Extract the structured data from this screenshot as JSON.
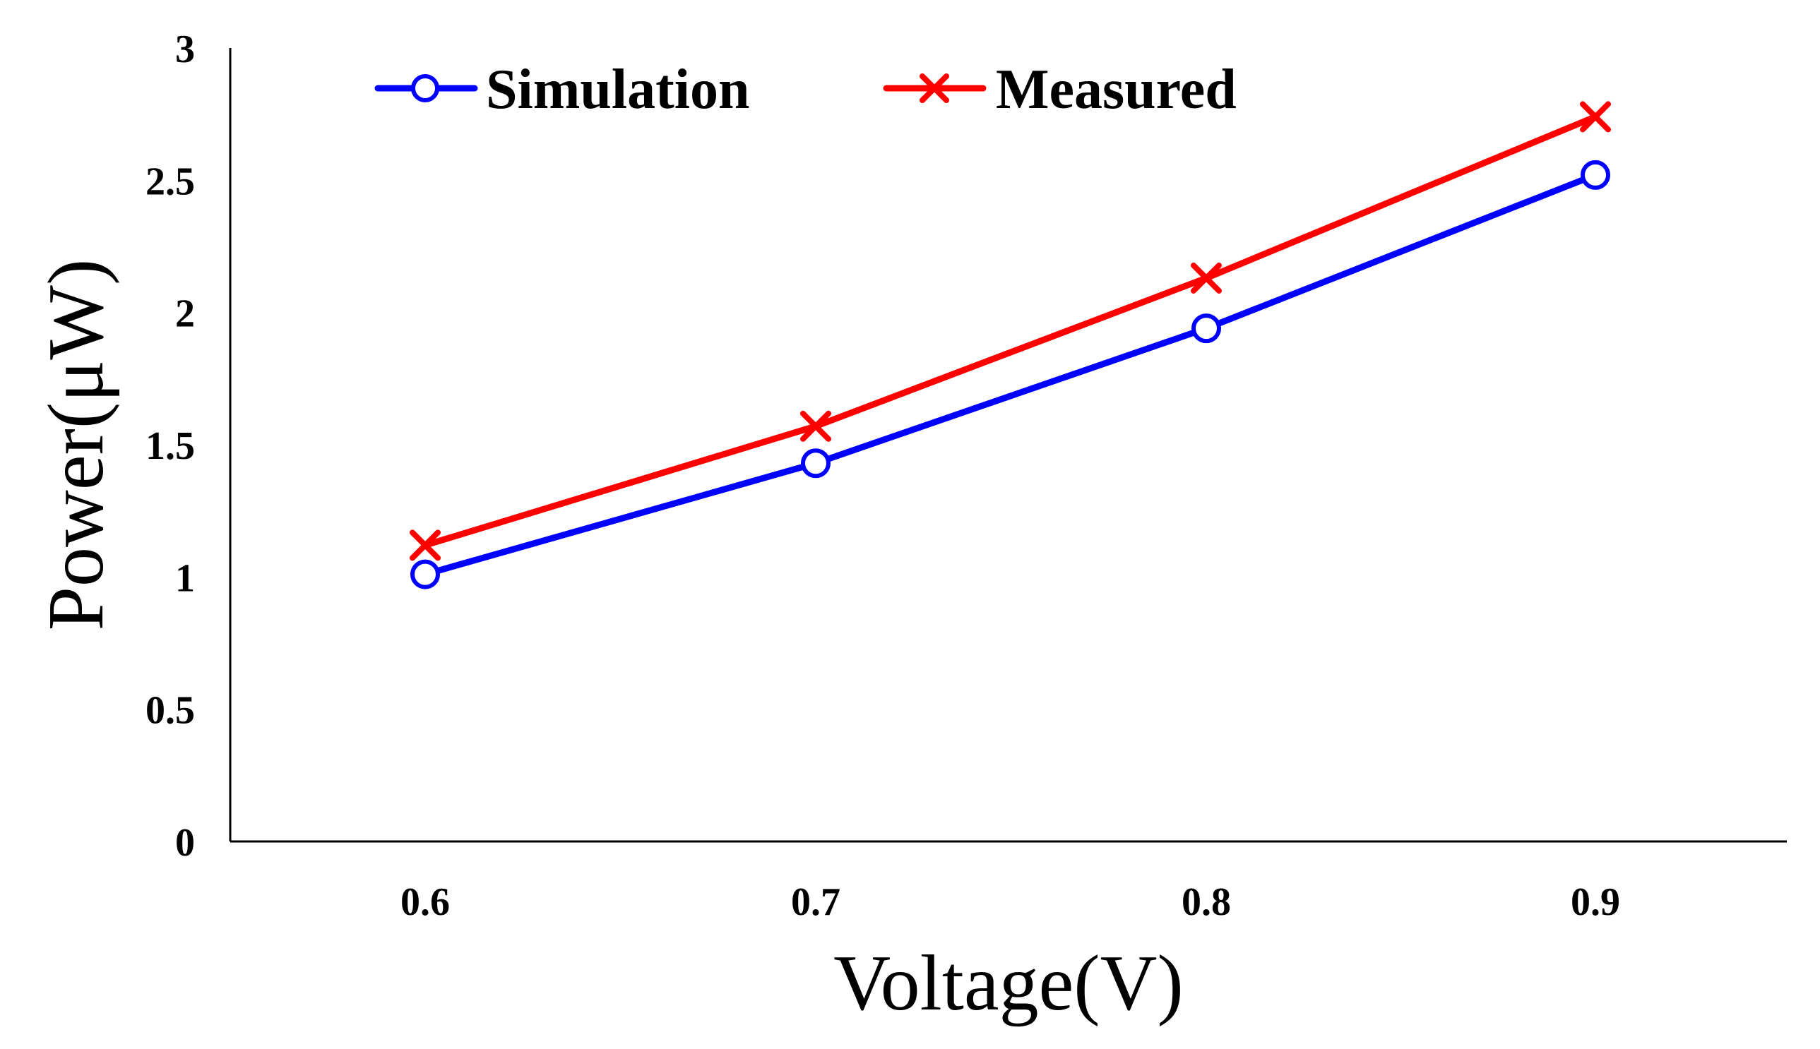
{
  "chart_data": {
    "type": "line",
    "title": "",
    "xlabel": "Voltage(V)",
    "ylabel": "Power(μW)",
    "categories": [
      "0.6",
      "0.7",
      "0.8",
      "0.9"
    ],
    "ylim": [
      0,
      3
    ],
    "yticks": [
      "0",
      "0.5",
      "1",
      "1.5",
      "2",
      "2.5",
      "3"
    ],
    "grid": false,
    "legend_position": "top",
    "series": [
      {
        "name": "Simulation",
        "values": [
          1.01,
          1.43,
          1.94,
          2.52
        ],
        "color": "#0000ff",
        "marker": "circle"
      },
      {
        "name": "Measured",
        "values": [
          1.12,
          1.57,
          2.13,
          2.74
        ],
        "color": "#ff0000",
        "marker": "x"
      }
    ]
  }
}
